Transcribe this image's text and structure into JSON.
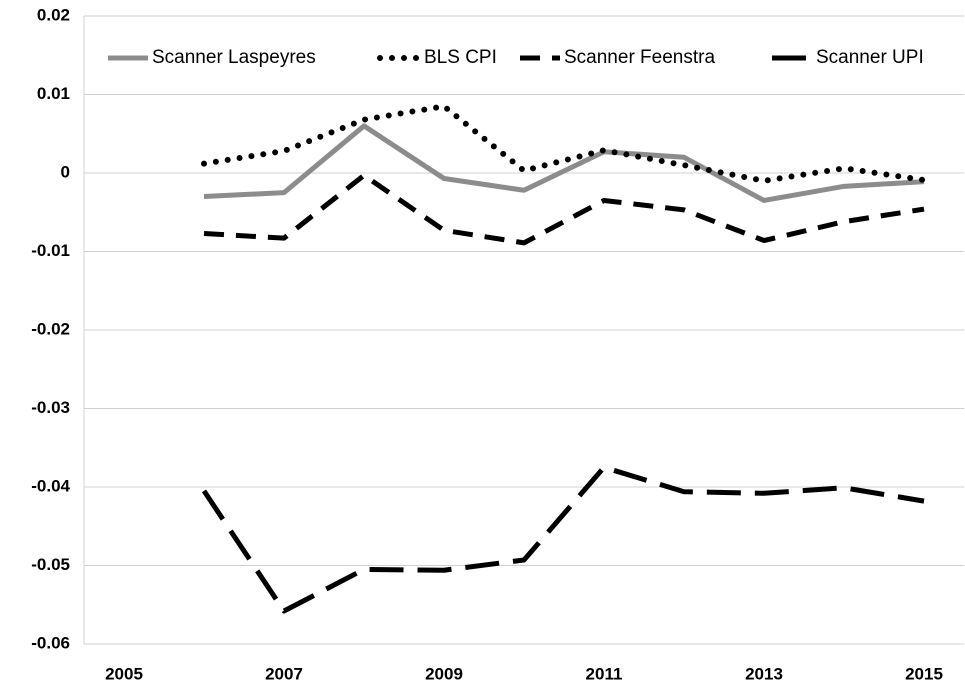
{
  "chart_data": {
    "type": "line",
    "categories": [
      2005,
      null,
      2007,
      null,
      2009,
      null,
      2011,
      null,
      2013,
      null,
      2015
    ],
    "ylim": [
      -0.06,
      0.02
    ],
    "yticks": [
      -0.06,
      -0.05,
      -0.04,
      -0.03,
      -0.02,
      -0.01,
      0,
      0.01,
      0.02
    ],
    "grid": true,
    "legend": "top",
    "series": [
      {
        "name": "Scanner Laspeyres",
        "color": "#8c8c8c",
        "style": "solid",
        "values": [
          null,
          -0.003,
          -0.0025,
          0.006,
          -0.0007,
          -0.0022,
          0.0027,
          0.002,
          -0.0035,
          -0.0017,
          -0.0011
        ]
      },
      {
        "name": "BLS CPI",
        "color": "#000000",
        "style": "dotted",
        "values": [
          null,
          0.0012,
          0.0028,
          0.0068,
          0.0085,
          0.0003,
          0.0029,
          0.001,
          -0.001,
          0.0006,
          -0.0009
        ]
      },
      {
        "name": "Scanner Feenstra",
        "color": "#000000",
        "style": "dashed",
        "values": [
          null,
          -0.0077,
          -0.0083,
          -0.0003,
          -0.0073,
          -0.0089,
          -0.0035,
          -0.0047,
          -0.0086,
          -0.0062,
          -0.0046
        ]
      },
      {
        "name": "Scanner UPI",
        "color": "#000000",
        "style": "longdash",
        "values": [
          null,
          -0.0405,
          -0.0558,
          -0.0505,
          -0.0506,
          -0.0493,
          -0.0375,
          -0.0406,
          -0.0408,
          -0.0401,
          -0.0418
        ]
      }
    ]
  }
}
